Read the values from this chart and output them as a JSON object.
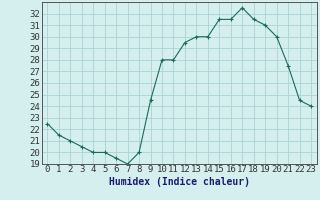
{
  "x": [
    0,
    1,
    2,
    3,
    4,
    5,
    6,
    7,
    8,
    9,
    10,
    11,
    12,
    13,
    14,
    15,
    16,
    17,
    18,
    19,
    20,
    21,
    22,
    23
  ],
  "y": [
    22.5,
    21.5,
    21.0,
    20.5,
    20.0,
    20.0,
    19.5,
    19.0,
    20.0,
    24.5,
    28.0,
    28.0,
    29.5,
    30.0,
    30.0,
    31.5,
    31.5,
    32.5,
    31.5,
    31.0,
    30.0,
    27.5,
    24.5,
    24.0
  ],
  "line_color": "#1a6b5a",
  "marker": "+",
  "background_color": "#d5efef",
  "grid_color": "#aad4d4",
  "xlabel": "Humidex (Indice chaleur)",
  "ylim": [
    19,
    33
  ],
  "xlim": [
    -0.5,
    23.5
  ],
  "yticks": [
    19,
    20,
    21,
    22,
    23,
    24,
    25,
    26,
    27,
    28,
    29,
    30,
    31,
    32
  ],
  "xticks": [
    0,
    1,
    2,
    3,
    4,
    5,
    6,
    7,
    8,
    9,
    10,
    11,
    12,
    13,
    14,
    15,
    16,
    17,
    18,
    19,
    20,
    21,
    22,
    23
  ],
  "label_fontsize": 7,
  "tick_fontsize": 6.5
}
